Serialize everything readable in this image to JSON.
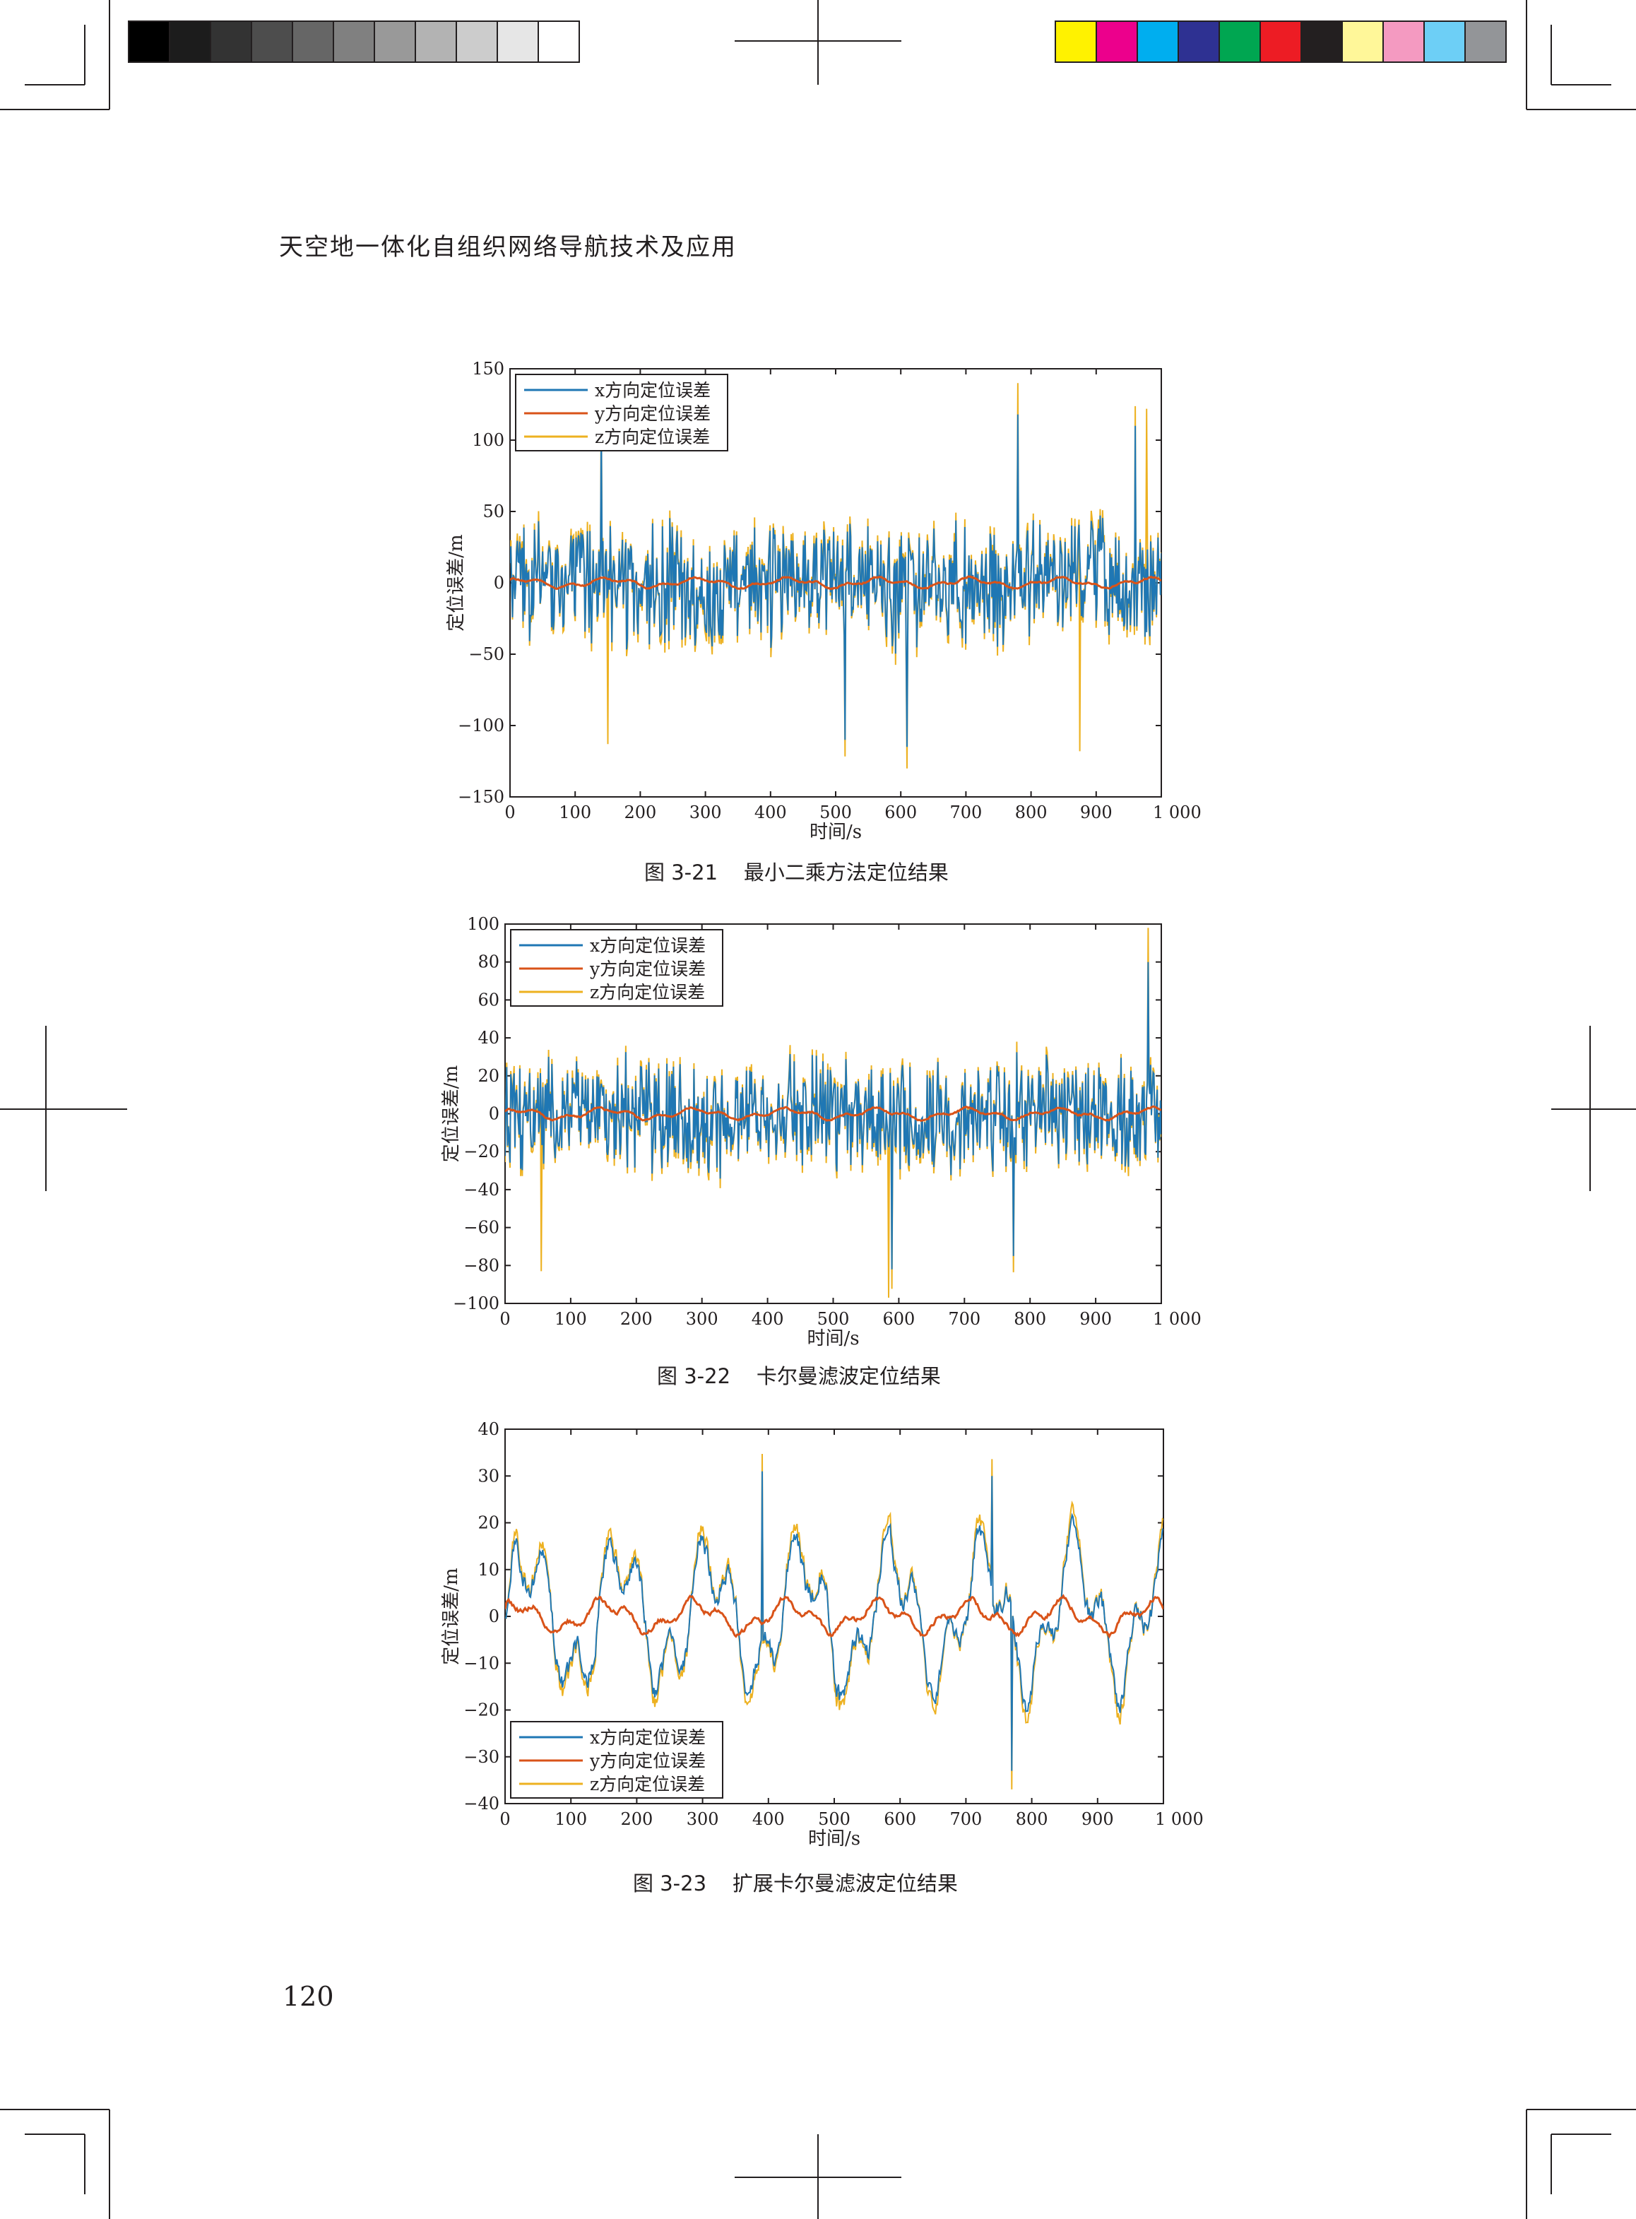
{
  "header": {
    "title": "天空地一体化自组织网络导航技术及应用"
  },
  "page_number": "120",
  "color_bars": {
    "gray": [
      "#000000",
      "#1c1c1c",
      "#333333",
      "#4d4d4d",
      "#666666",
      "#808080",
      "#999999",
      "#b3b3b3",
      "#cccccc",
      "#e6e6e6",
      "#ffffff"
    ],
    "color": [
      "#fff200",
      "#ec008c",
      "#00aeef",
      "#2e3192",
      "#00a651",
      "#ed1c24",
      "#231f20",
      "#fff799",
      "#f49ac1",
      "#6dcff6",
      "#939598"
    ]
  },
  "series_colors": {
    "x": "#1f77b4",
    "y": "#d95319",
    "z": "#edb120"
  },
  "chart_data": [
    {
      "type": "line",
      "caption": "图 3-21    最小二乘方法定位结果",
      "xlabel": "时间/s",
      "ylabel": "定位误差/m",
      "xlim": [
        0,
        1000
      ],
      "ylim": [
        -150,
        150
      ],
      "xticks": [
        0,
        100,
        200,
        300,
        400,
        500,
        600,
        700,
        800,
        900,
        1000
      ],
      "xtick_labels": [
        "0",
        "100",
        "200",
        "300",
        "400",
        "500",
        "600",
        "700",
        "800",
        "900",
        "1 000"
      ],
      "yticks": [
        150,
        100,
        50,
        0,
        -50,
        -100,
        -150
      ],
      "ytick_labels": [
        "150",
        "100",
        "50",
        "0",
        "−50",
        "−100",
        "−150"
      ],
      "legend_position": "top-left",
      "series": [
        {
          "name": "x方向定位误差",
          "amplitude": 35,
          "peaks": [
            [
              140,
              115
            ],
            [
              780,
              118
            ],
            [
              960,
              110
            ],
            [
              515,
              -110
            ],
            [
              610,
              -115
            ]
          ]
        },
        {
          "name": "y方向定位误差",
          "amplitude": 3
        },
        {
          "name": "z方向定位误差",
          "amplitude": 40,
          "peaks": [
            [
              780,
              140
            ],
            [
              978,
              122
            ],
            [
              150,
              -113
            ],
            [
              875,
              -118
            ]
          ]
        }
      ]
    },
    {
      "type": "line",
      "caption": "图 3-22    卡尔曼滤波定位结果",
      "xlabel": "时间/s",
      "ylabel": "定位误差/m",
      "xlim": [
        0,
        1000
      ],
      "ylim": [
        -100,
        100
      ],
      "xticks": [
        0,
        100,
        200,
        300,
        400,
        500,
        600,
        700,
        800,
        900,
        1000
      ],
      "xtick_labels": [
        "0",
        "100",
        "200",
        "300",
        "400",
        "500",
        "600",
        "700",
        "800",
        "900",
        "1 000"
      ],
      "yticks": [
        100,
        80,
        60,
        40,
        20,
        0,
        -20,
        -40,
        -60,
        -80,
        -100
      ],
      "ytick_labels": [
        "100",
        "80",
        "60",
        "40",
        "20",
        "0",
        "−20",
        "−40",
        "−60",
        "−80",
        "−100"
      ],
      "legend_position": "top-left",
      "series": [
        {
          "name": "x方向定位误差",
          "amplitude": 25,
          "peaks": [
            [
              590,
              -82
            ],
            [
              775,
              -75
            ],
            [
              980,
              80
            ]
          ]
        },
        {
          "name": "y方向定位误差",
          "amplitude": 2.5
        },
        {
          "name": "z方向定位误差",
          "amplitude": 28,
          "peaks": [
            [
              980,
              98
            ],
            [
              585,
              -97
            ],
            [
              55,
              -83
            ]
          ]
        }
      ]
    },
    {
      "type": "line",
      "caption": "图 3-23    扩展卡尔曼滤波定位结果",
      "xlabel": "时间/s",
      "ylabel": "定位误差/m",
      "xlim": [
        0,
        1000
      ],
      "ylim": [
        -40,
        40
      ],
      "xticks": [
        0,
        100,
        200,
        300,
        400,
        500,
        600,
        700,
        800,
        900,
        1000
      ],
      "xtick_labels": [
        "0",
        "100",
        "200",
        "300",
        "400",
        "500",
        "600",
        "700",
        "800",
        "900",
        "1 000"
      ],
      "yticks": [
        40,
        30,
        20,
        10,
        0,
        -10,
        -20,
        -30,
        -40
      ],
      "ytick_labels": [
        "40",
        "30",
        "20",
        "10",
        "0",
        "−10",
        "−20",
        "−30",
        "−40"
      ],
      "legend_position": "bottom-left",
      "series": [
        {
          "name": "x方向定位误差",
          "amplitude": 14,
          "peaks": [
            [
              390,
              31
            ],
            [
              770,
              -33
            ],
            [
              740,
              30
            ]
          ]
        },
        {
          "name": "y方向定位误差",
          "amplitude": 3
        },
        {
          "name": "z方向定位误差",
          "amplitude": 16,
          "peaks": [
            [
              390,
              33
            ],
            [
              745,
              32
            ],
            [
              770,
              -34
            ]
          ]
        }
      ]
    }
  ]
}
